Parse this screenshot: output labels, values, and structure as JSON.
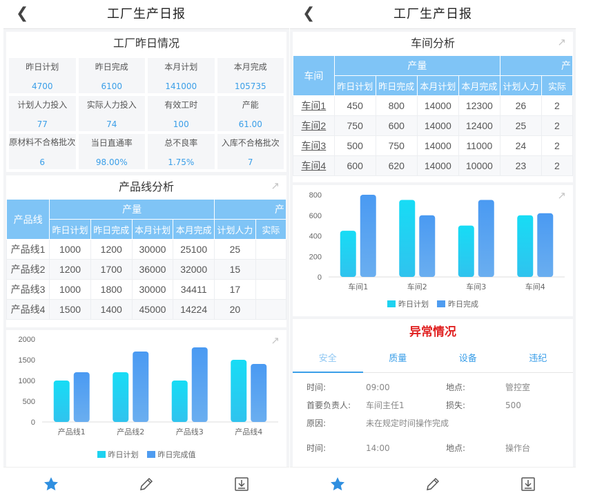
{
  "left": {
    "header": {
      "title": "工厂生产日报"
    },
    "factory": {
      "title": "工厂昨日情况",
      "stats": [
        {
          "label": "昨日计划",
          "value": "4700"
        },
        {
          "label": "昨日完成",
          "value": "6100"
        },
        {
          "label": "本月计划",
          "value": "141000"
        },
        {
          "label": "本月完成",
          "value": "105735"
        },
        {
          "label": "计划人力投入",
          "value": "77"
        },
        {
          "label": "实际人力投入",
          "value": "74"
        },
        {
          "label": "有效工时",
          "value": "100"
        },
        {
          "label": "产能",
          "value": "61.00"
        },
        {
          "label": "原材料不合格批次",
          "value": "6"
        },
        {
          "label": "当日直通率",
          "value": "98.00%"
        },
        {
          "label": "总不良率",
          "value": "1.75%"
        },
        {
          "label": "入库不合格批次",
          "value": "7"
        }
      ]
    },
    "lines": {
      "title": "产品线分析",
      "row_header": "产品线",
      "group_header": "产量",
      "group_header_2": "产",
      "columns": [
        "昨日计划",
        "昨日完成",
        "本月计划",
        "本月完成",
        "计划人力",
        "实际"
      ],
      "rows": [
        {
          "name": "产品线1",
          "cells": [
            "1000",
            "1200",
            "30000",
            "25100",
            "25",
            ""
          ]
        },
        {
          "name": "产品线2",
          "cells": [
            "1200",
            "1700",
            "36000",
            "32000",
            "15",
            ""
          ]
        },
        {
          "name": "产品线3",
          "cells": [
            "1000",
            "1800",
            "30000",
            "34411",
            "17",
            ""
          ]
        },
        {
          "name": "产品线4",
          "cells": [
            "1500",
            "1400",
            "45000",
            "14224",
            "20",
            ""
          ]
        }
      ]
    }
  },
  "right": {
    "header": {
      "title": "工厂生产日报"
    },
    "workshop": {
      "title": "车间分析",
      "row_header": "车间",
      "group_header": "产量",
      "group_header_2": "产",
      "columns": [
        "昨日计划",
        "昨日完成",
        "本月计划",
        "本月完成",
        "计划人力",
        "实际"
      ],
      "rows": [
        {
          "name": "车间1",
          "cells": [
            "450",
            "800",
            "14000",
            "12300",
            "26",
            "2"
          ]
        },
        {
          "name": "车间2",
          "cells": [
            "750",
            "600",
            "14000",
            "12400",
            "25",
            "2"
          ]
        },
        {
          "name": "车间3",
          "cells": [
            "500",
            "750",
            "14000",
            "11000",
            "24",
            "2"
          ]
        },
        {
          "name": "车间4",
          "cells": [
            "600",
            "620",
            "14000",
            "10000",
            "23",
            "2"
          ]
        }
      ]
    },
    "abnormal": {
      "title": "异常情况",
      "tabs": [
        "安全",
        "质量",
        "设备",
        "违纪"
      ],
      "records": [
        {
          "time_label": "时间:",
          "time": "09:00",
          "place_label": "地点:",
          "place": "管控室",
          "owner_label": "首要负责人:",
          "owner": "车间主任1",
          "loss_label": "损失:",
          "loss": "500",
          "reason_label": "原因:",
          "reason": "未在规定时间操作完成"
        },
        {
          "time_label": "时间:",
          "time": "14:00",
          "place_label": "地点:",
          "place": "操作台"
        }
      ]
    }
  },
  "colors": {
    "plan": "#1ed2f0",
    "done": "#4f9cf0",
    "header_blue": "#7fc4f6",
    "alert_red": "#e02020",
    "link_blue": "#3a9ee8"
  },
  "chart_data": [
    {
      "type": "bar",
      "categories": [
        "产品线1",
        "产品线2",
        "产品线3",
        "产品线4"
      ],
      "series": [
        {
          "name": "昨日计划",
          "values": [
            1000,
            1200,
            1000,
            1500
          ]
        },
        {
          "name": "昨日完成值",
          "values": [
            1200,
            1700,
            1800,
            1400
          ]
        }
      ],
      "yticks": [
        "2000",
        "1500",
        "1000",
        "500",
        "0"
      ],
      "ylim": [
        0,
        2000
      ],
      "legend": "bottom"
    },
    {
      "type": "bar",
      "categories": [
        "车间1",
        "车间2",
        "车间3",
        "车间4"
      ],
      "series": [
        {
          "name": "昨日计划",
          "values": [
            450,
            750,
            500,
            600
          ]
        },
        {
          "name": "昨日完成",
          "values": [
            800,
            600,
            750,
            620
          ]
        }
      ],
      "yticks": [
        "800",
        "600",
        "400",
        "200",
        "0"
      ],
      "ylim": [
        0,
        800
      ],
      "legend": "bottom"
    }
  ],
  "bottom_nav": [
    "star-icon",
    "pencil-icon",
    "download-icon"
  ]
}
